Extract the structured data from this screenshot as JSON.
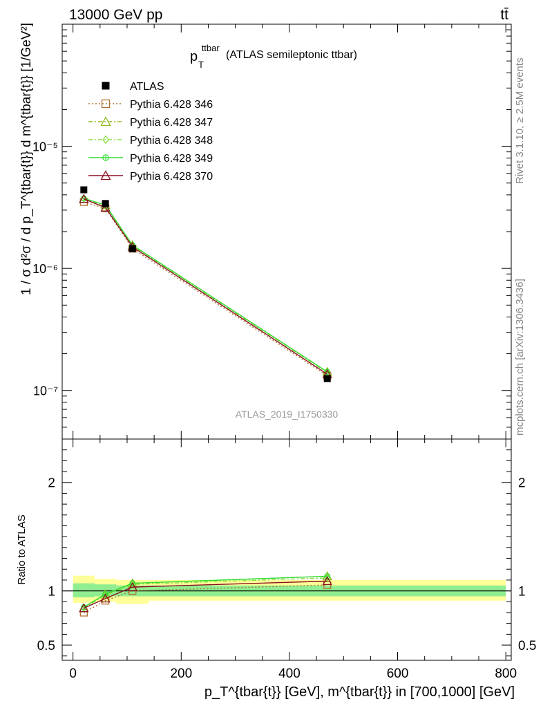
{
  "header": {
    "left": "13000 GeV pp",
    "right": "tt̄"
  },
  "side_labels": {
    "rivet": "Rivet 3.1.10, ≥ 2.5M events",
    "mcplots": "mcplots.cern.ch [arXiv:1306.3436]"
  },
  "watermark": "ATLAS_2019_I1750330",
  "title": {
    "p": "p",
    "sup": "ttbar",
    "sub": "T",
    "rest": "(ATLAS semileptonic ttbar)"
  },
  "ylabel_main": "1 / σ d²σ / d p_T^{tbar{t}} d m^{tbar{t}} [1/GeV²]",
  "ylabel_ratio": "Ratio to ATLAS",
  "xlabel": "p_T^{tbar{t}} [GeV], m^{tbar{t}} in [700,1000] [GeV]",
  "chart_data": [
    {
      "type": "line",
      "panel": "main",
      "yscale": "log",
      "xlim": [
        -20,
        810
      ],
      "ylim": [
        4e-08,
        0.0001
      ],
      "x_ticks": [
        0,
        200,
        400,
        600,
        800
      ],
      "y_tick_labels": [
        "10⁻⁵",
        "10⁻⁶",
        "10⁻⁷"
      ],
      "series": [
        {
          "name": "ATLAS",
          "color": "#000000",
          "marker": "square-filled",
          "line": "none",
          "x": [
            20,
            60,
            110,
            470
          ],
          "y": [
            4.4e-06,
            3.4e-06,
            1.45e-06,
            1.25e-07
          ]
        },
        {
          "name": "Pythia 6.428 346",
          "color": "#b07030",
          "marker": "square-open",
          "line": "dotted",
          "x": [
            20,
            60,
            110,
            470
          ],
          "y": [
            3.5e-06,
            3.1e-06,
            1.45e-06,
            1.32e-07
          ]
        },
        {
          "name": "Pythia 6.428 347",
          "color": "#90b820",
          "marker": "triangle-open",
          "line": "dashdot",
          "x": [
            20,
            60,
            110,
            470
          ],
          "y": [
            3.7e-06,
            3.3e-06,
            1.55e-06,
            1.42e-07
          ]
        },
        {
          "name": "Pythia 6.428 348",
          "color": "#88e040",
          "marker": "diamond-open",
          "line": "dashdot",
          "x": [
            20,
            60,
            110,
            470
          ],
          "y": [
            3.7e-06,
            3.25e-06,
            1.53e-06,
            1.4e-07
          ]
        },
        {
          "name": "Pythia 6.428 349",
          "color": "#33dd33",
          "marker": "circle-cross",
          "line": "solid",
          "x": [
            20,
            60,
            110,
            470
          ],
          "y": [
            3.75e-06,
            3.3e-06,
            1.55e-06,
            1.42e-07
          ]
        },
        {
          "name": "Pythia 6.428 370",
          "color": "#8b1020",
          "marker": "triangle-open",
          "line": "solid",
          "x": [
            20,
            60,
            110,
            470
          ],
          "y": [
            3.7e-06,
            3.15e-06,
            1.5e-06,
            1.36e-07
          ]
        }
      ]
    },
    {
      "type": "line",
      "panel": "ratio",
      "ylabel": "Ratio to ATLAS",
      "xlim": [
        -20,
        810
      ],
      "ylim": [
        0.36,
        2.4
      ],
      "y_ticks": [
        0.5,
        1,
        2
      ],
      "y_tick_labels": [
        "0.5",
        "1",
        "2"
      ],
      "bands": {
        "x_edges": [
          0,
          40,
          80,
          140,
          800
        ],
        "yellow": [
          [
            0.89,
            1.14
          ],
          [
            0.9,
            1.11
          ],
          [
            0.88,
            1.1
          ],
          [
            0.91,
            1.1
          ]
        ],
        "green": [
          [
            0.94,
            1.07
          ],
          [
            0.95,
            1.06
          ],
          [
            0.95,
            1.05
          ],
          [
            0.95,
            1.05
          ]
        ]
      },
      "series": [
        {
          "name": "Pythia 6.428 346",
          "x": [
            20,
            60,
            110,
            470
          ],
          "y": [
            0.8,
            0.91,
            1.0,
            1.055
          ]
        },
        {
          "name": "Pythia 6.428 347",
          "x": [
            20,
            60,
            110,
            470
          ],
          "y": [
            0.84,
            0.97,
            1.07,
            1.135
          ]
        },
        {
          "name": "Pythia 6.428 348",
          "x": [
            20,
            60,
            110,
            470
          ],
          "y": [
            0.84,
            0.96,
            1.06,
            1.12
          ]
        },
        {
          "name": "Pythia 6.428 349",
          "x": [
            20,
            60,
            110,
            470
          ],
          "y": [
            0.85,
            0.97,
            1.07,
            1.135
          ]
        },
        {
          "name": "Pythia 6.428 370",
          "x": [
            20,
            60,
            110,
            470
          ],
          "y": [
            0.84,
            0.93,
            1.035,
            1.09
          ]
        }
      ]
    }
  ]
}
